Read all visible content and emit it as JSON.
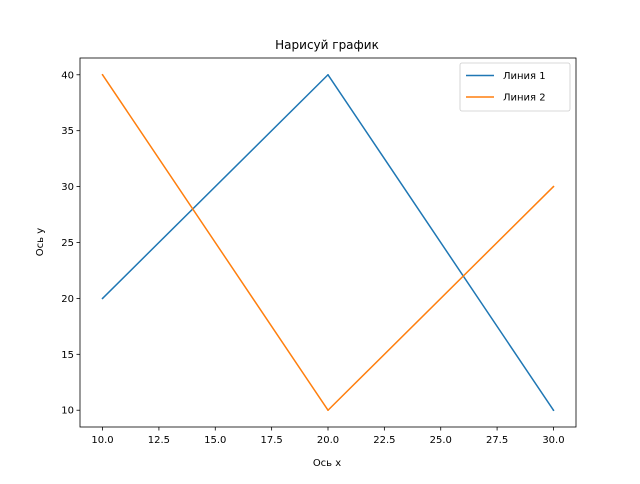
{
  "chart_data": {
    "type": "line",
    "title": "Нарисуй график",
    "xlabel": "Ось x",
    "ylabel": "Ось y",
    "xlim": [
      9.0,
      31.0
    ],
    "ylim": [
      8.5,
      41.5
    ],
    "x_ticks": [
      "10.0",
      "12.5",
      "15.0",
      "17.5",
      "20.0",
      "22.5",
      "25.0",
      "27.5",
      "30.0"
    ],
    "y_ticks": [
      "10",
      "15",
      "20",
      "25",
      "30",
      "35",
      "40"
    ],
    "grid": false,
    "legend_position": "top-right",
    "series": [
      {
        "name": "Линия 1",
        "color": "#1f77b4",
        "x": [
          10,
          20,
          30
        ],
        "y": [
          20,
          40,
          10
        ]
      },
      {
        "name": "Линия 2",
        "color": "#ff7f0e",
        "x": [
          10,
          20,
          30
        ],
        "y": [
          40,
          10,
          30
        ]
      }
    ]
  }
}
